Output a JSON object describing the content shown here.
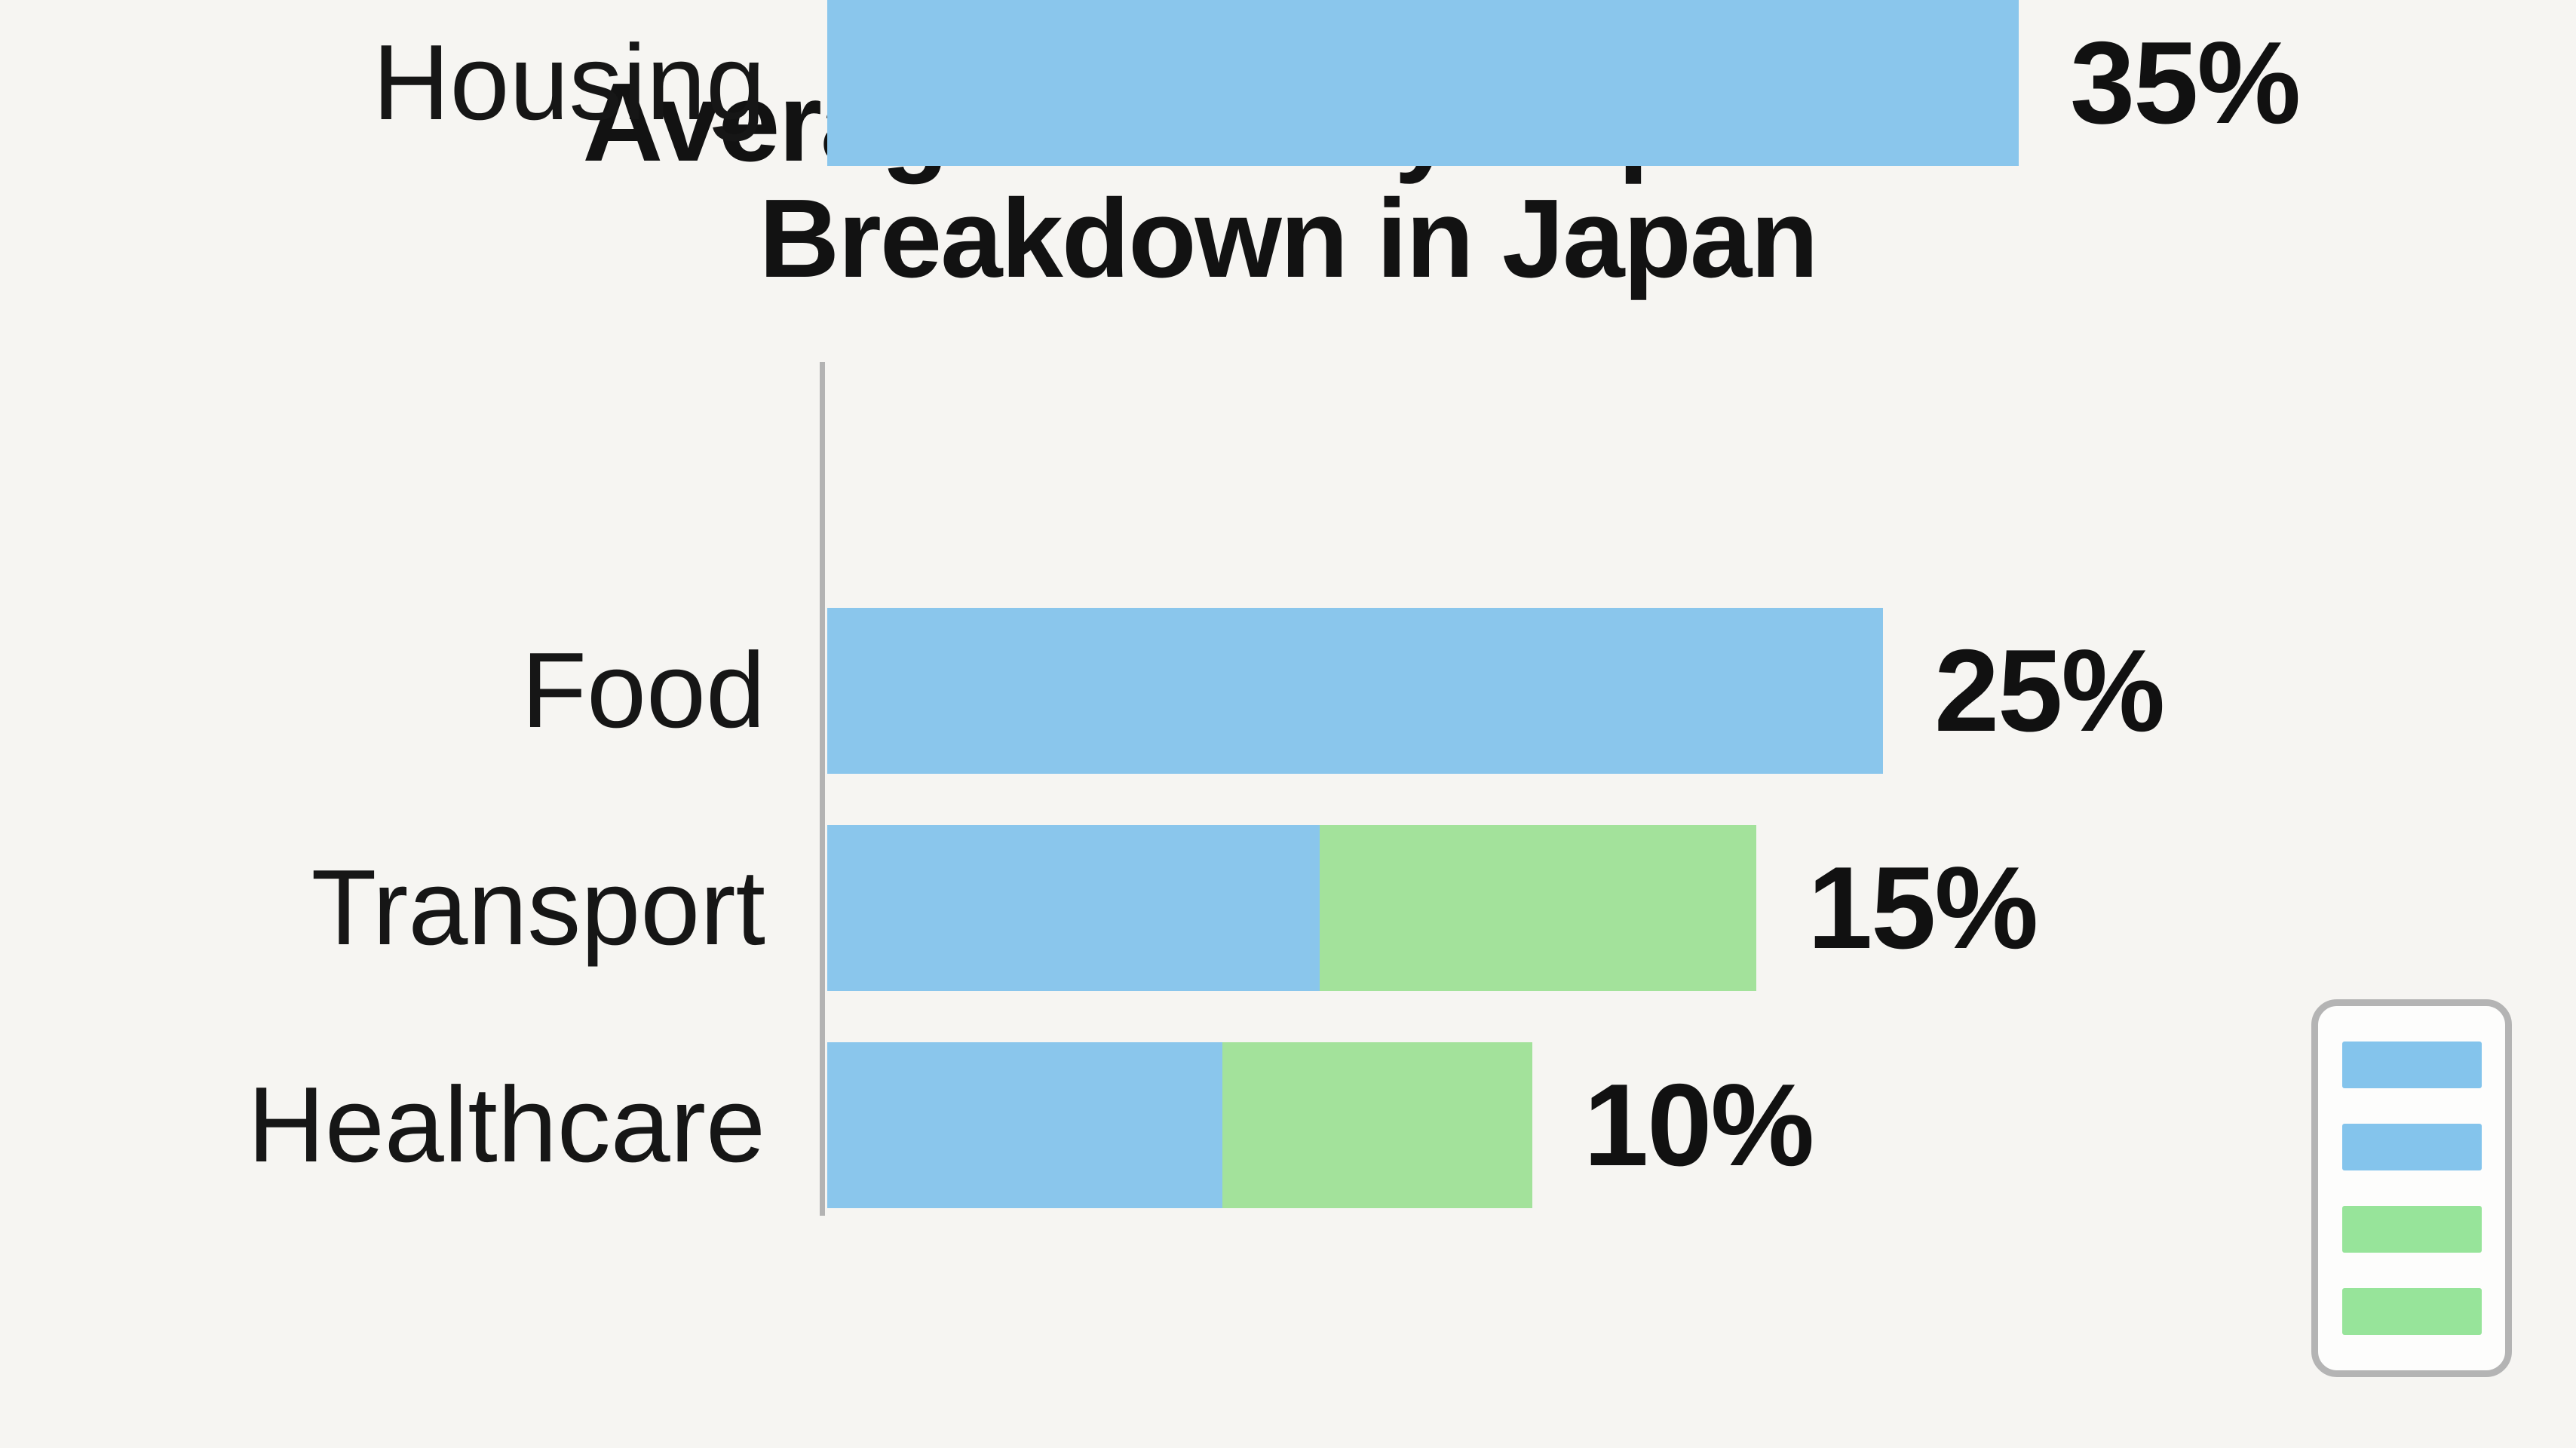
{
  "title": {
    "line1": "Average Monthly Expenses",
    "line2": "Breakdown in Japan"
  },
  "chart_data": {
    "type": "bar",
    "orientation": "horizontal",
    "title": "Average Monthly Expenses Breakdown in Japan",
    "xlabel": "",
    "ylabel": "",
    "grid": false,
    "axis_line": "left-vertical-gray",
    "categories": [
      "Housing",
      "Food",
      "Transport",
      "Healthcare"
    ],
    "values": [
      35,
      25,
      15,
      10
    ],
    "value_labels": [
      "35%",
      "25%",
      "15%",
      "10%"
    ],
    "colors": {
      "blue": "#8ac6ec",
      "green": "#a3e29b"
    },
    "bars": [
      {
        "category": "Housing",
        "value": 35,
        "label": "35%",
        "length_frac": 1.0,
        "segments": [
          {
            "color": "blue",
            "frac": 1.0
          }
        ]
      },
      {
        "category": "Food",
        "value": 25,
        "label": "25%",
        "length_frac": 0.886,
        "segments": [
          {
            "color": "blue",
            "frac": 1.0
          }
        ]
      },
      {
        "category": "Transport",
        "value": 15,
        "label": "15%",
        "length_frac": 0.78,
        "segments": [
          {
            "color": "blue",
            "frac": 0.53
          },
          {
            "color": "green",
            "frac": 0.47
          }
        ]
      },
      {
        "category": "Healthcare",
        "value": 10,
        "label": "10%",
        "length_frac": 0.592,
        "segments": [
          {
            "color": "blue",
            "frac": 0.56
          },
          {
            "color": "green",
            "frac": 0.44
          }
        ]
      }
    ],
    "legend": {
      "position": "bottom-right",
      "swatches": [
        "blue",
        "blue",
        "green",
        "green"
      ],
      "labels": [],
      "colors": {
        "blue": "#84c4ec",
        "green": "#97e49a"
      }
    },
    "layout_note": "bar lengths as rendered are not strictly proportional to percentage values"
  }
}
